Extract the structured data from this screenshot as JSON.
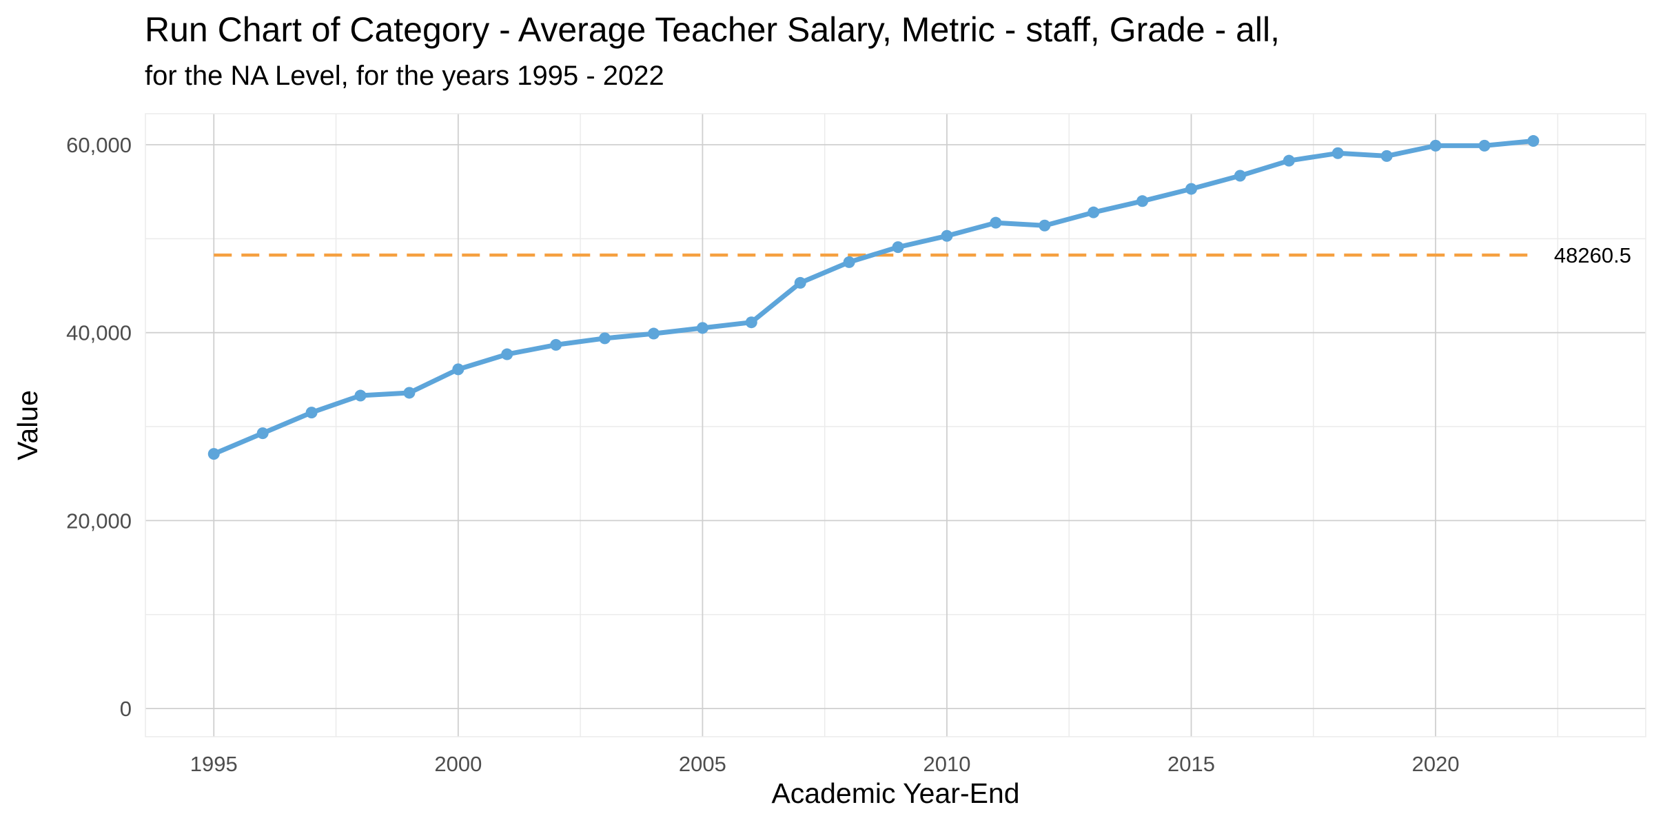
{
  "chart_data": {
    "type": "line",
    "title": "Run Chart of Category - Average Teacher Salary, Metric - staff, Grade - all,",
    "subtitle": "for the NA Level, for the years 1995 - 2022",
    "xlabel": "Academic Year-End",
    "ylabel": "Value",
    "xlim": [
      1993.6,
      2024.3
    ],
    "ylim": [
      -3000,
      63300
    ],
    "x_ticks": [
      1995,
      2000,
      2005,
      2010,
      2015,
      2020
    ],
    "y_ticks": [
      0,
      20000,
      40000,
      60000
    ],
    "y_tick_labels": [
      "0",
      "20,000",
      "40,000",
      "60,000"
    ],
    "grid": true,
    "x": [
      1995,
      1996,
      1997,
      1998,
      1999,
      2000,
      2001,
      2002,
      2003,
      2004,
      2005,
      2006,
      2007,
      2008,
      2009,
      2010,
      2011,
      2012,
      2013,
      2014,
      2015,
      2016,
      2017,
      2018,
      2019,
      2020,
      2021,
      2022
    ],
    "series": [
      {
        "values": [
          27100,
          29300,
          31500,
          33300,
          33600,
          36100,
          37700,
          38700,
          39400,
          39900,
          40500,
          41100,
          45300,
          47500,
          49100,
          50300,
          51700,
          51400,
          52800,
          54000,
          55300,
          56700,
          58300,
          59100,
          58800,
          59900,
          59900,
          60400
        ]
      }
    ],
    "reference_line": {
      "value": 48260.5,
      "label": "48260.5",
      "x_start": 1995,
      "x_end": 2022
    },
    "colors": {
      "line": "#5DA5DA",
      "reference": "#F5A040",
      "grid_major": "#cfcfcf",
      "grid_minor": "#ebebeb"
    }
  }
}
